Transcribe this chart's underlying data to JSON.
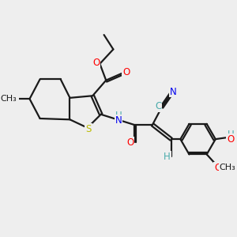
{
  "bg_color": "#eeeeee",
  "bond_color": "#1a1a1a",
  "bond_lw": 1.6,
  "atom_colors": {
    "O": "#ff0000",
    "N": "#0000ee",
    "S": "#bbbb00",
    "H": "#4aabab",
    "C": "#1a1a1a"
  },
  "figsize": [
    3.0,
    3.0
  ],
  "dpi": 100,
  "xlim": [
    0,
    10
  ],
  "ylim": [
    0,
    10
  ]
}
